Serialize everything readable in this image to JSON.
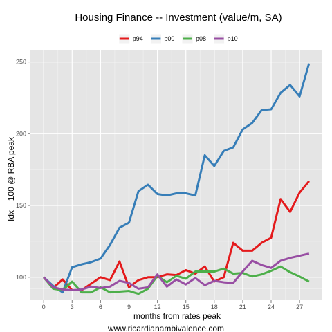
{
  "chart_data": {
    "type": "line",
    "title": "Housing Finance -- Investment (value/m, SA)",
    "xlabel": "months from rates peak",
    "ylabel": "Idx = 100 @ RBA peak",
    "caption": "www.ricardianambivalence.com",
    "xlim": [
      -1.4,
      29.4
    ],
    "ylim": [
      84,
      258
    ],
    "x_ticks": [
      0,
      3,
      6,
      9,
      12,
      15,
      18,
      21,
      24,
      27
    ],
    "y_ticks": [
      100,
      150,
      200,
      250
    ],
    "grid": true,
    "legend_position": "top",
    "x": [
      0,
      1,
      2,
      3,
      4,
      5,
      6,
      7,
      8,
      9,
      10,
      11,
      12,
      13,
      14,
      15,
      16,
      17,
      18,
      19,
      20,
      21,
      22,
      23,
      24,
      25,
      26,
      27,
      28
    ],
    "series": [
      {
        "name": "p94",
        "color": "#e41a1c",
        "values": [
          100,
          92.5,
          98.5,
          91,
          91,
          95.5,
          100,
          98,
          111,
          93,
          98,
          100,
          100,
          102,
          101.5,
          105,
          102.5,
          107.5,
          97,
          100,
          124,
          118.5,
          118.5,
          124,
          127.5,
          154.5,
          145.5,
          159,
          167
        ]
      },
      {
        "name": "p00",
        "color": "#377eb8",
        "values": [
          100,
          94,
          89.5,
          107,
          109,
          110.5,
          113,
          122.5,
          134.5,
          138,
          160,
          164.5,
          158,
          157,
          158.5,
          158.5,
          157,
          185,
          177.5,
          188,
          190.5,
          203,
          207.5,
          216.5,
          217,
          228.5,
          234,
          226,
          249
        ]
      },
      {
        "name": "p08",
        "color": "#4daf4a",
        "values": [
          100,
          92,
          91,
          97,
          89.5,
          89.5,
          93,
          89.5,
          90,
          90.5,
          88.5,
          92,
          101,
          96.5,
          101,
          99,
          104,
          104,
          104,
          106,
          102.5,
          103,
          100.5,
          102,
          104.5,
          107.5,
          103.5,
          100.5,
          97
        ]
      },
      {
        "name": "p10",
        "color": "#984ea3",
        "values": [
          100,
          93,
          91.5,
          91,
          91.5,
          93.5,
          92.5,
          93.5,
          97.5,
          96,
          92,
          93,
          102,
          93.5,
          98.5,
          95,
          99.5,
          94.5,
          97.5,
          96.5,
          96,
          104,
          111.5,
          108.5,
          106.5,
          111.5,
          113.5,
          115,
          116.5
        ]
      }
    ]
  }
}
